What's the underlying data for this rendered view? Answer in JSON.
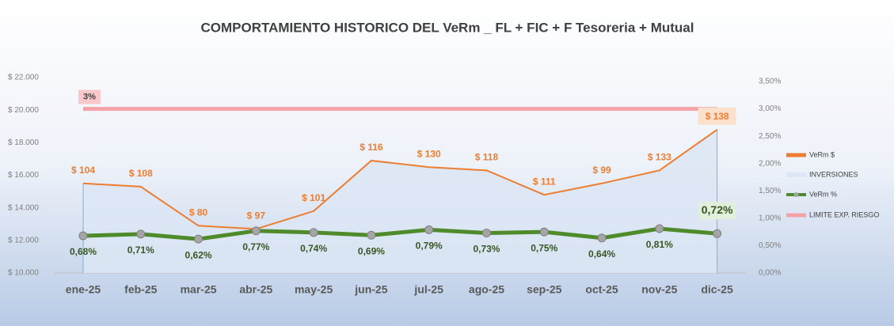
{
  "chart_data": {
    "type": "combo",
    "title": "COMPORTAMIENTO  HISTORICO DEL VeRm _ FL + FIC + F Tesoreria + Mutual",
    "categories": [
      "ene-25",
      "feb-25",
      "mar-25",
      "abr-25",
      "may-25",
      "jun-25",
      "jul-25",
      "ago-25",
      "sep-25",
      "oct-25",
      "nov-25",
      "dic-25"
    ],
    "ylim": [
      10000,
      22000
    ],
    "yticks": [
      {
        "value": 10000,
        "label": "$ 10.000"
      },
      {
        "value": 12000,
        "label": "$ 12.000"
      },
      {
        "value": 14000,
        "label": "$ 14.000"
      },
      {
        "value": 16000,
        "label": "$ 16.000"
      },
      {
        "value": 18000,
        "label": "$ 18.000"
      },
      {
        "value": 20000,
        "label": "$ 20.000"
      },
      {
        "value": 22000,
        "label": "$ 22.000"
      }
    ],
    "y2lim": [
      0,
      3.5
    ],
    "y2ticks": [
      {
        "value": 0,
        "label": "0,00%"
      },
      {
        "value": 0.5,
        "label": "0,50%"
      },
      {
        "value": 1,
        "label": "1,00%"
      },
      {
        "value": 1.5,
        "label": "1,50%"
      },
      {
        "value": 2,
        "label": "2,00%"
      },
      {
        "value": 2.5,
        "label": "2,50%"
      },
      {
        "value": 3,
        "label": "3,00%"
      },
      {
        "value": 3.5,
        "label": "3,50%"
      }
    ],
    "series": [
      {
        "name": "VeRm $",
        "color": "#ed7d31",
        "values": [
          104,
          108,
          80,
          97,
          101,
          116,
          130,
          118,
          111,
          99,
          133,
          138
        ],
        "value_labels": [
          "$ 104",
          "$ 108",
          "$ 80",
          "$ 97",
          "$ 101",
          "$ 116",
          "$ 130",
          "$ 118",
          "$ 111",
          "$ 99",
          "$ 133",
          "$ 138"
        ]
      },
      {
        "name": "INVERSIONES",
        "color": "#dce6f4",
        "values": [
          15500,
          15300,
          12900,
          12700,
          13800,
          16900,
          16500,
          16300,
          14800,
          15500,
          16300,
          18800
        ]
      },
      {
        "name": "VeRm %",
        "color": "#4f8a2b",
        "axis": "y2",
        "values": [
          0.68,
          0.71,
          0.62,
          0.77,
          0.74,
          0.69,
          0.79,
          0.73,
          0.75,
          0.64,
          0.81,
          0.72
        ],
        "value_labels": [
          "0,68%",
          "0,71%",
          "0,62%",
          "0,77%",
          "0,74%",
          "0,69%",
          "0,79%",
          "0,73%",
          "0,75%",
          "0,64%",
          "0,81%",
          "0,72%"
        ]
      },
      {
        "name": "LIMITE EXP. RIESGO",
        "color": "#f4a3a8",
        "axis": "y2",
        "values": [
          3,
          3,
          3,
          3,
          3,
          3,
          3,
          3,
          3,
          3,
          3,
          3
        ],
        "value_labels": [
          "3%"
        ]
      }
    ]
  }
}
